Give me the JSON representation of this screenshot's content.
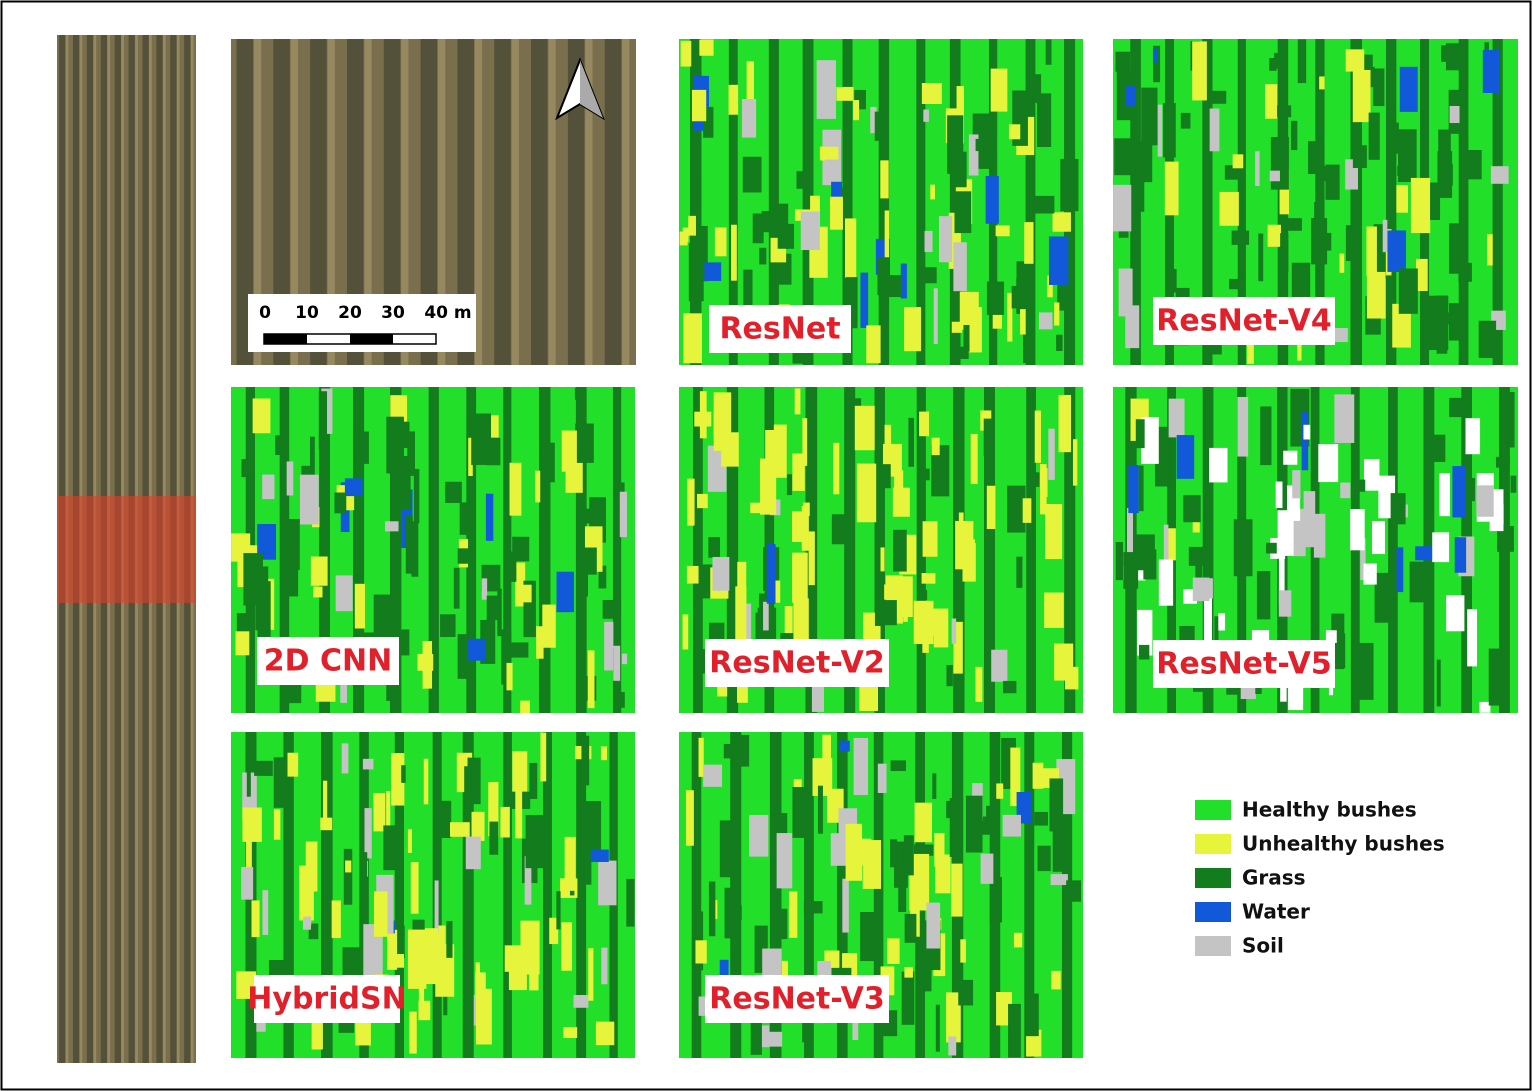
{
  "scale_bar": {
    "labels": [
      "0",
      "10",
      "20",
      "30",
      "40 m"
    ]
  },
  "panels": [
    {
      "label": "ResNet"
    },
    {
      "label": "ResNet-V4"
    },
    {
      "label": "2D CNN"
    },
    {
      "label": "ResNet-V2"
    },
    {
      "label": "ResNet-V5"
    },
    {
      "label": "HybridSN"
    },
    {
      "label": "ResNet-V3"
    }
  ],
  "legend": [
    {
      "label": "Healthy bushes",
      "color": "#22e02a"
    },
    {
      "label": "Unhealthy bushes",
      "color": "#e6f53c"
    },
    {
      "label": "Grass",
      "color": "#137c1c"
    },
    {
      "label": "Water",
      "color": "#1159d8"
    },
    {
      "label": "Soil",
      "color": "#c4c4c4"
    }
  ]
}
